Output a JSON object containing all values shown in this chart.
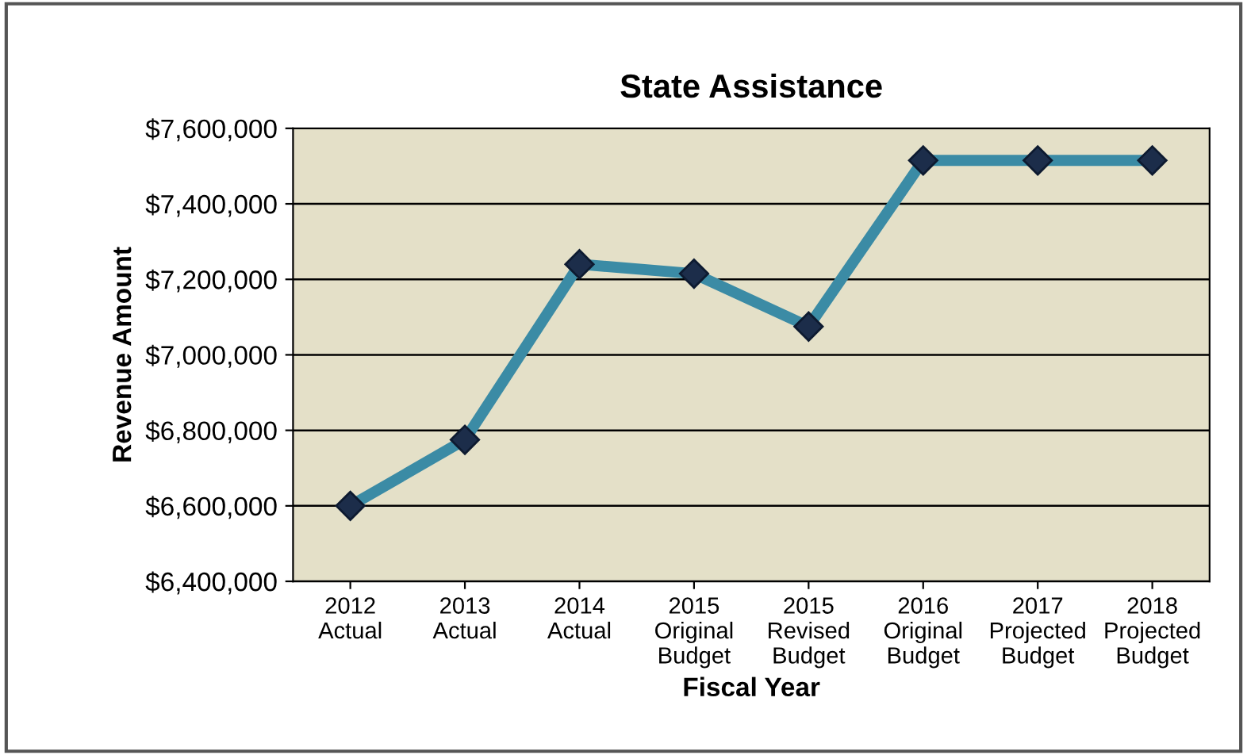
{
  "chart_data": {
    "type": "line",
    "title": "State Assistance",
    "xlabel": "Fiscal Year",
    "ylabel": "Revenue Amount",
    "categories": [
      "2012\nActual",
      "2013\nActual",
      "2014\nActual",
      "2015\nOriginal\nBudget",
      "2015\nRevised\nBudget",
      "2016\nOriginal\nBudget",
      "2017\nProjected\nBudget",
      "2018\nProjected\nBudget"
    ],
    "series": [
      {
        "color": "#3b8ba5",
        "values": [
          6600000,
          6775000,
          7240000,
          7215000,
          7075000,
          7515000,
          7515000,
          7515000
        ]
      }
    ],
    "ylim": [
      6400000,
      7600000
    ],
    "yticks": [
      {
        "value": 6400000,
        "label": "$6,400,000"
      },
      {
        "value": 6600000,
        "label": "$6,600,000"
      },
      {
        "value": 6800000,
        "label": "$6,800,000"
      },
      {
        "value": 7000000,
        "label": "$7,000,000"
      },
      {
        "value": 7200000,
        "label": "$7,200,000"
      },
      {
        "value": 7400000,
        "label": "$7,400,000"
      },
      {
        "value": 7600000,
        "label": "$7,600,000"
      }
    ],
    "grid": "y",
    "marker": "diamond",
    "line_style": "solid",
    "legend": false
  }
}
